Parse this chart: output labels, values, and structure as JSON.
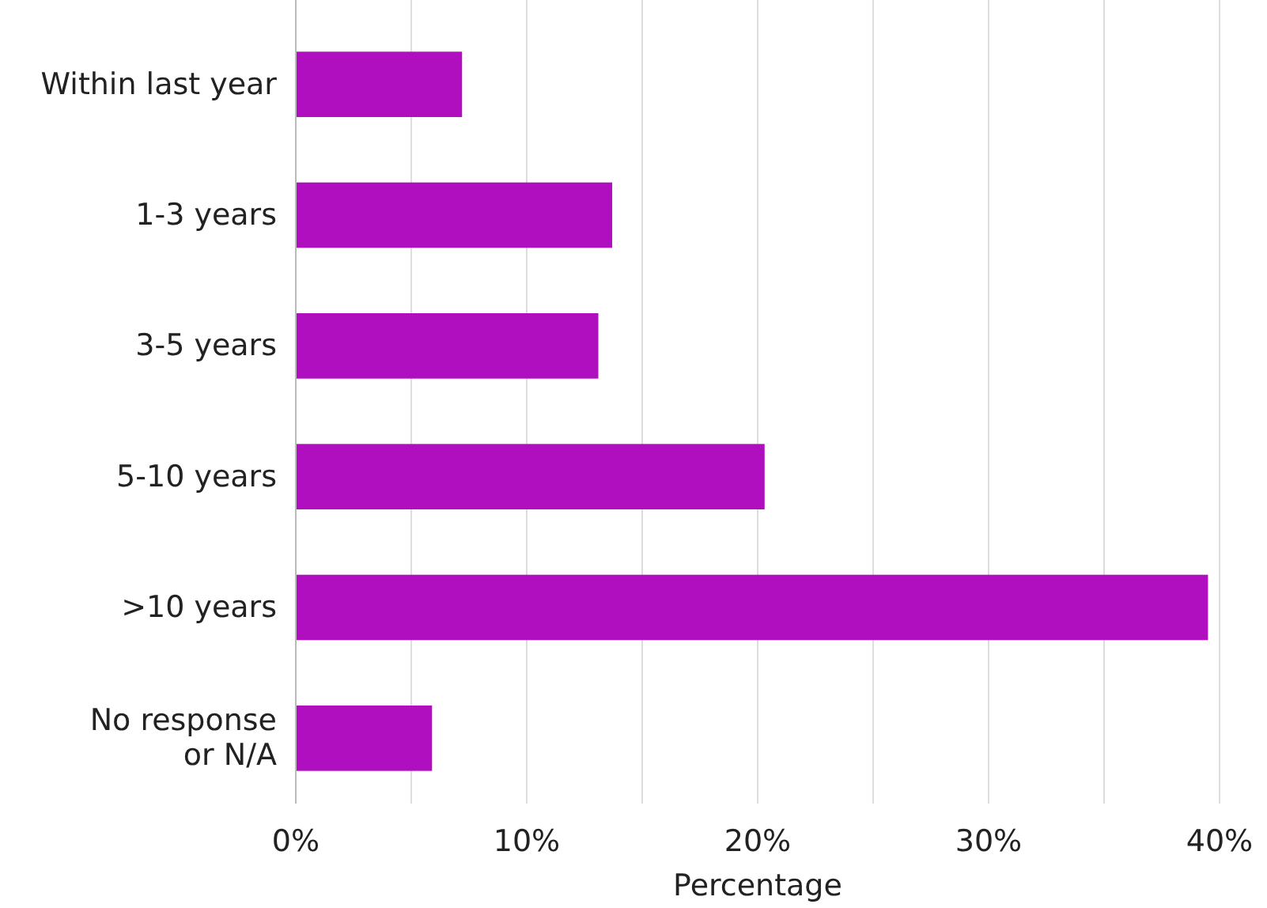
{
  "chart_data": {
    "type": "bar",
    "orientation": "horizontal",
    "xlabel": "Percentage",
    "categories": [
      "Within last year",
      "1-3 years",
      "3-5 years",
      "5-10 years",
      ">10 years",
      "No response\nor N/A"
    ],
    "values": [
      7.2,
      13.7,
      13.1,
      20.3,
      39.5,
      5.9
    ],
    "color": "#b00fbf",
    "xlim": [
      0,
      40
    ],
    "xticks": [
      {
        "value": 0,
        "label": "0%"
      },
      {
        "value": 5,
        "label": null
      },
      {
        "value": 10,
        "label": "10%"
      },
      {
        "value": 15,
        "label": null
      },
      {
        "value": 20,
        "label": "20%"
      },
      {
        "value": 25,
        "label": null
      },
      {
        "value": 30,
        "label": "30%"
      },
      {
        "value": 35,
        "label": null
      },
      {
        "value": 40,
        "label": "40%"
      }
    ],
    "grid": "x"
  }
}
